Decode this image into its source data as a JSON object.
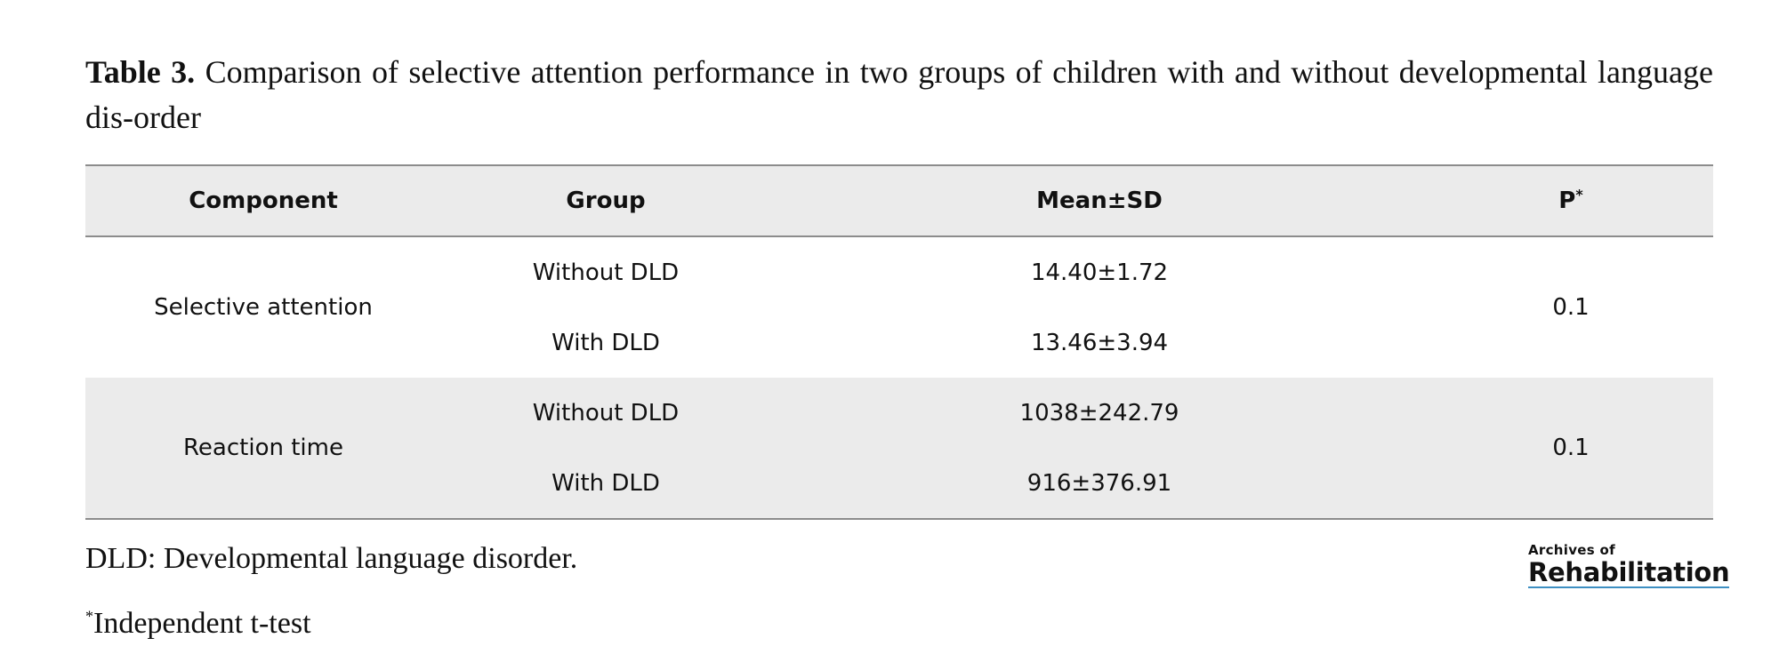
{
  "caption": {
    "label": "Table 3.",
    "text": "Comparison of selective attention performance in two groups of children with and without developmental language dis-order"
  },
  "table": {
    "headers": {
      "component": "Component",
      "group": "Group",
      "mean_sd": "Mean±SD",
      "p": "P",
      "p_marker": "*"
    },
    "rows": [
      {
        "component": "Selective attention",
        "p": "0.1",
        "groups": [
          {
            "group": "Without DLD",
            "mean_sd": "14.40±1.72"
          },
          {
            "group": "With DLD",
            "mean_sd": "13.46±3.94"
          }
        ]
      },
      {
        "component": "Reaction time",
        "p": "0.1",
        "groups": [
          {
            "group": "Without DLD",
            "mean_sd": "1038±242.79"
          },
          {
            "group": "With DLD",
            "mean_sd": "916±376.91"
          }
        ]
      }
    ]
  },
  "footnotes": {
    "abbreviation": "DLD: Developmental language disorder.",
    "test_marker": "*",
    "test": "Independent t-test"
  },
  "logo": {
    "top": "Archives of",
    "main": "Rehabilitation",
    "accent_color": "#3d8fc2"
  }
}
